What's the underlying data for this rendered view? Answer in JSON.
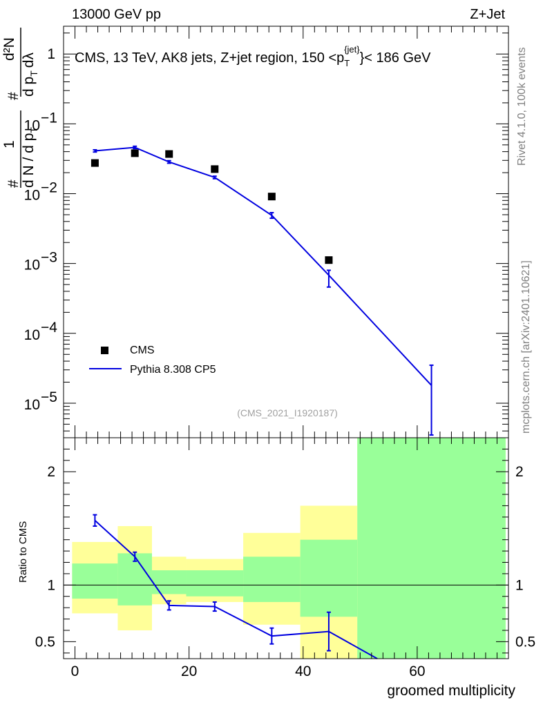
{
  "header": {
    "energy": "13000 GeV pp",
    "process": "Z+Jet"
  },
  "side_text": {
    "rivet": "Rivet 4.1.0,  100k events",
    "mcplots": "mcplots.cern.ch [arXiv:2401.10621]"
  },
  "watermark": "(CMS_2021_I1920187)",
  "chart_data": [
    {
      "type": "scatter",
      "title": "CMS, 13 TeV, AK8 jets, Z+jet region, 150 <p_T^{jet}< 186 GeV",
      "title_parts": {
        "main": "CMS, 13 TeV, AK8 jets, Z+jet region, 150 <p",
        "sub": "T",
        "sup": "{jet}",
        "tail": "}< 186 GeV"
      },
      "ylabel": "1/dN/dp_T  d^2N/dp_T dλ",
      "ylabel_parts": {
        "hash1": "#",
        "one": "1",
        "dN": "d N / d p",
        "dNsub": "T",
        "hash2": "#",
        "d2N": "d²N",
        "dp": "d p",
        "dpsub": "T",
        "dl": "dλ"
      },
      "yscale": "log",
      "ylim": [
        3.2e-06,
        2.5
      ],
      "xlim": [
        -2,
        76
      ],
      "yticks": [
        {
          "value": 1,
          "label": "1"
        },
        {
          "value": 0.1,
          "base": "10",
          "exp": "−1"
        },
        {
          "value": 0.01,
          "base": "10",
          "exp": "−2"
        },
        {
          "value": 0.001,
          "base": "10",
          "exp": "−3"
        },
        {
          "value": 0.0001,
          "base": "10",
          "exp": "−4"
        },
        {
          "value": 1e-05,
          "base": "10",
          "exp": "−5"
        }
      ],
      "legend": {
        "placement": "bottom-left",
        "data_label": "CMS",
        "mc_label": "Pythia 8.308 CP5"
      },
      "series": [
        {
          "name": "CMS",
          "x": [
            3.5,
            10.5,
            16.5,
            24.5,
            34.5,
            44.5
          ],
          "y": [
            0.0275,
            0.038,
            0.037,
            0.0225,
            0.0091,
            0.00112
          ]
        },
        {
          "name": "Pythia 8.308 CP5",
          "x": [
            3.5,
            10.5,
            16.5,
            24.5,
            34.5,
            44.5,
            62.5
          ],
          "y": [
            0.041,
            0.046,
            0.0285,
            0.0171,
            0.0049,
            0.00068,
            1.8e-05
          ],
          "err_lo": [
            0.0015,
            0.0018,
            0.0012,
            0.0007,
            0.00045,
            0.00022,
            1.45e-05
          ],
          "err_hi": [
            0.0015,
            0.0018,
            0.0012,
            0.0007,
            0.00045,
            0.00012,
            1.7e-05
          ]
        }
      ]
    },
    {
      "type": "line",
      "ylabel": "Ratio to CMS",
      "xlabel": "groomed multiplicity",
      "ylim": [
        0.35,
        2.3
      ],
      "xlim": [
        -2,
        76
      ],
      "xticks": [
        0,
        20,
        40,
        60
      ],
      "yticks": [
        0.5,
        1,
        2
      ],
      "bands": [
        {
          "x0": -0.5,
          "x1": 7.5,
          "yellow": [
            0.75,
            1.38
          ],
          "green": [
            0.88,
            1.19
          ]
        },
        {
          "x0": 7.5,
          "x1": 13.5,
          "yellow": [
            0.6,
            1.52
          ],
          "green": [
            0.82,
            1.28
          ]
        },
        {
          "x0": 13.5,
          "x1": 19.5,
          "yellow": [
            0.83,
            1.25
          ],
          "green": [
            0.92,
            1.13
          ]
        },
        {
          "x0": 19.5,
          "x1": 29.5,
          "yellow": [
            0.85,
            1.23
          ],
          "green": [
            0.9,
            1.13
          ]
        },
        {
          "x0": 29.5,
          "x1": 39.5,
          "yellow": [
            0.65,
            1.46
          ],
          "green": [
            0.85,
            1.25
          ]
        },
        {
          "x0": 39.5,
          "x1": 49.5,
          "yellow": [
            0.35,
            1.7
          ],
          "green": [
            0.72,
            1.4
          ]
        },
        {
          "x0": 49.5,
          "x1": 75.5,
          "yellow": [
            0.35,
            2.3
          ],
          "green": [
            0.35,
            2.3
          ]
        }
      ],
      "series": [
        {
          "name": "Pythia 8.308 CP5 / CMS",
          "x": [
            3.5,
            10.5,
            16.5,
            24.5,
            34.5,
            44.5,
            53
          ],
          "y": [
            1.57,
            1.25,
            0.82,
            0.81,
            0.55,
            0.59,
            0.35
          ],
          "err": [
            0.05,
            0.04,
            0.04,
            0.04,
            0.07,
            0.17,
            0
          ]
        }
      ]
    }
  ]
}
